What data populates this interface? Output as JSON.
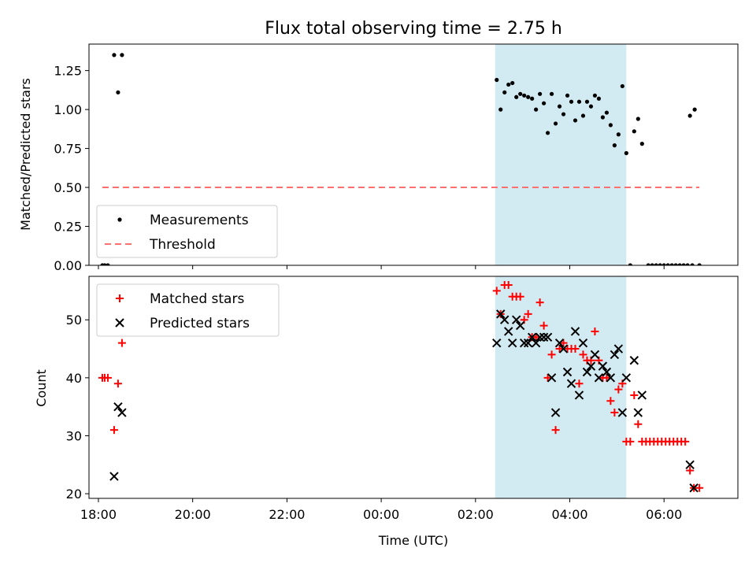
{
  "title": "Flux total observing time = 2.75 h",
  "colors": {
    "measurement": "#000000",
    "threshold": "#ff6f6f",
    "matched": "#ff0000",
    "predicted": "#000000",
    "shade": "#add8e6"
  },
  "chart_data": [
    {
      "type": "scatter",
      "panel": "top",
      "ylabel": "Matched/Predicted stars",
      "xlim": [
        "17:48",
        "07:34"
      ],
      "ylim": [
        0,
        1.42
      ],
      "yticks": [
        0.0,
        0.25,
        0.5,
        0.75,
        1.0,
        1.25
      ],
      "ytick_labels": [
        "0.00",
        "0.25",
        "0.50",
        "0.75",
        "1.00",
        "1.25"
      ],
      "shaded_interval": [
        "02:25",
        "05:12"
      ],
      "legend_position": "lower-left",
      "series": [
        {
          "name": "Measurements",
          "marker": "dot",
          "points": [
            [
              "18:05",
              0.0
            ],
            [
              "18:08",
              0.0
            ],
            [
              "18:12",
              0.0
            ],
            [
              "18:20",
              1.35
            ],
            [
              "18:25",
              1.11
            ],
            [
              "18:30",
              1.35
            ],
            [
              "02:27",
              1.19
            ],
            [
              "02:32",
              1.0
            ],
            [
              "02:37",
              1.11
            ],
            [
              "02:42",
              1.16
            ],
            [
              "02:47",
              1.17
            ],
            [
              "02:52",
              1.08
            ],
            [
              "02:57",
              1.1
            ],
            [
              "03:02",
              1.09
            ],
            [
              "03:07",
              1.08
            ],
            [
              "03:12",
              1.07
            ],
            [
              "03:17",
              1.0
            ],
            [
              "03:22",
              1.1
            ],
            [
              "03:27",
              1.04
            ],
            [
              "03:32",
              0.85
            ],
            [
              "03:37",
              1.1
            ],
            [
              "03:42",
              0.91
            ],
            [
              "03:47",
              1.02
            ],
            [
              "03:52",
              0.97
            ],
            [
              "03:57",
              1.09
            ],
            [
              "04:02",
              1.05
            ],
            [
              "04:07",
              0.93
            ],
            [
              "04:12",
              1.05
            ],
            [
              "04:17",
              0.96
            ],
            [
              "04:22",
              1.05
            ],
            [
              "04:27",
              1.02
            ],
            [
              "04:32",
              1.09
            ],
            [
              "04:37",
              1.07
            ],
            [
              "04:42",
              0.95
            ],
            [
              "04:47",
              0.98
            ],
            [
              "04:52",
              0.9
            ],
            [
              "04:57",
              0.77
            ],
            [
              "05:02",
              0.84
            ],
            [
              "05:07",
              1.15
            ],
            [
              "05:12",
              0.72
            ],
            [
              "05:17",
              0.0
            ],
            [
              "05:22",
              0.86
            ],
            [
              "05:27",
              0.94
            ],
            [
              "05:32",
              0.78
            ],
            [
              "05:40",
              0.0
            ],
            [
              "05:45",
              0.0
            ],
            [
              "05:50",
              0.0
            ],
            [
              "05:55",
              0.0
            ],
            [
              "06:00",
              0.0
            ],
            [
              "06:05",
              0.0
            ],
            [
              "06:10",
              0.0
            ],
            [
              "06:15",
              0.0
            ],
            [
              "06:20",
              0.0
            ],
            [
              "06:25",
              0.0
            ],
            [
              "06:30",
              0.0
            ],
            [
              "06:33",
              0.96
            ],
            [
              "06:36",
              0.0
            ],
            [
              "06:39",
              1.0
            ],
            [
              "06:45",
              0.0
            ]
          ]
        },
        {
          "name": "Threshold",
          "style": "dashed-line",
          "x": [
            "18:05",
            "06:45"
          ],
          "y": [
            0.5,
            0.5
          ]
        }
      ]
    },
    {
      "type": "scatter",
      "panel": "bottom",
      "ylabel": "Count",
      "xlabel": "Time (UTC)",
      "xlim": [
        "17:48",
        "07:34"
      ],
      "ylim": [
        19.2,
        57.5
      ],
      "yticks": [
        20,
        30,
        40,
        50
      ],
      "ytick_labels": [
        "20",
        "30",
        "40",
        "50"
      ],
      "xticks": [
        "18:00",
        "20:00",
        "22:00",
        "00:00",
        "02:00",
        "04:00",
        "06:00"
      ],
      "shaded_interval": [
        "02:25",
        "05:12"
      ],
      "legend_position": "upper-left",
      "series": [
        {
          "name": "Matched stars",
          "marker": "plus",
          "points": [
            [
              "18:05",
              40
            ],
            [
              "18:08",
              40
            ],
            [
              "18:12",
              40
            ],
            [
              "18:20",
              31
            ],
            [
              "18:25",
              39
            ],
            [
              "18:30",
              46
            ],
            [
              "02:27",
              55
            ],
            [
              "02:32",
              51
            ],
            [
              "02:37",
              56
            ],
            [
              "02:42",
              56
            ],
            [
              "02:47",
              54
            ],
            [
              "02:52",
              54
            ],
            [
              "02:57",
              54
            ],
            [
              "03:02",
              50
            ],
            [
              "03:07",
              51
            ],
            [
              "03:12",
              47
            ],
            [
              "03:17",
              47
            ],
            [
              "03:22",
              53
            ],
            [
              "03:27",
              49
            ],
            [
              "03:32",
              40
            ],
            [
              "03:37",
              44
            ],
            [
              "03:42",
              31
            ],
            [
              "03:47",
              45
            ],
            [
              "03:52",
              46
            ],
            [
              "03:57",
              45
            ],
            [
              "04:02",
              45
            ],
            [
              "04:07",
              45
            ],
            [
              "04:12",
              39
            ],
            [
              "04:17",
              44
            ],
            [
              "04:22",
              43
            ],
            [
              "04:27",
              43
            ],
            [
              "04:32",
              48
            ],
            [
              "04:37",
              43
            ],
            [
              "04:42",
              40
            ],
            [
              "04:47",
              40
            ],
            [
              "04:52",
              36
            ],
            [
              "04:57",
              34
            ],
            [
              "05:02",
              38
            ],
            [
              "05:07",
              39
            ],
            [
              "05:12",
              29
            ],
            [
              "05:17",
              29
            ],
            [
              "05:22",
              37
            ],
            [
              "05:27",
              32
            ],
            [
              "05:32",
              29
            ],
            [
              "05:37",
              29
            ],
            [
              "05:42",
              29
            ],
            [
              "05:47",
              29
            ],
            [
              "05:52",
              29
            ],
            [
              "05:57",
              29
            ],
            [
              "06:02",
              29
            ],
            [
              "06:07",
              29
            ],
            [
              "06:12",
              29
            ],
            [
              "06:17",
              29
            ],
            [
              "06:22",
              29
            ],
            [
              "06:27",
              29
            ],
            [
              "06:33",
              24
            ],
            [
              "06:38",
              21
            ],
            [
              "06:45",
              21
            ]
          ]
        },
        {
          "name": "Predicted stars",
          "marker": "x",
          "points": [
            [
              "18:20",
              23
            ],
            [
              "18:25",
              35
            ],
            [
              "18:30",
              34
            ],
            [
              "02:27",
              46
            ],
            [
              "02:32",
              51
            ],
            [
              "02:37",
              50
            ],
            [
              "02:42",
              48
            ],
            [
              "02:47",
              46
            ],
            [
              "02:52",
              50
            ],
            [
              "02:57",
              49
            ],
            [
              "03:02",
              46
            ],
            [
              "03:07",
              46
            ],
            [
              "03:12",
              47
            ],
            [
              "03:17",
              46
            ],
            [
              "03:22",
              47
            ],
            [
              "03:27",
              47
            ],
            [
              "03:32",
              47
            ],
            [
              "03:37",
              40
            ],
            [
              "03:42",
              34
            ],
            [
              "03:47",
              46
            ],
            [
              "03:52",
              45
            ],
            [
              "03:57",
              41
            ],
            [
              "04:02",
              39
            ],
            [
              "04:07",
              48
            ],
            [
              "04:12",
              37
            ],
            [
              "04:17",
              46
            ],
            [
              "04:22",
              41
            ],
            [
              "04:27",
              42
            ],
            [
              "04:32",
              44
            ],
            [
              "04:37",
              40
            ],
            [
              "04:42",
              42
            ],
            [
              "04:47",
              41
            ],
            [
              "04:52",
              40
            ],
            [
              "04:57",
              44
            ],
            [
              "05:02",
              45
            ],
            [
              "05:07",
              34
            ],
            [
              "05:12",
              40
            ],
            [
              "05:22",
              43
            ],
            [
              "05:27",
              34
            ],
            [
              "05:32",
              37
            ],
            [
              "06:33",
              25
            ],
            [
              "06:38",
              21
            ]
          ]
        }
      ]
    }
  ]
}
